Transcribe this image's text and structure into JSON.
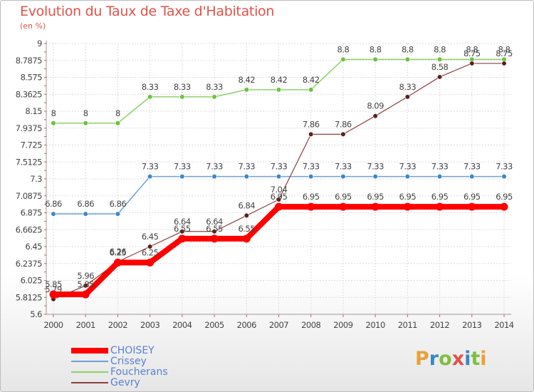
{
  "title": "Evolution du Taux de Taxe d'Habitation",
  "subtitle": "(en %)",
  "colors": {
    "title": "#e0524a",
    "legend_text": "#5a7fd0",
    "axis_text": "#444444",
    "grid": "#dddddd"
  },
  "logo": {
    "letters": [
      {
        "char": "P",
        "color": "#e8a23a"
      },
      {
        "char": "r",
        "color": "#3a86c8"
      },
      {
        "char": "o",
        "color": "#7fbf3f"
      },
      {
        "char": "x",
        "color": "#e0524a"
      },
      {
        "char": "i",
        "color": "#3a86c8"
      },
      {
        "char": "t",
        "color": "#7fbf3f"
      },
      {
        "char": "i",
        "color": "#e8a23a"
      }
    ]
  },
  "chart_data": {
    "type": "line",
    "title": "Evolution du Taux de Taxe d'Habitation",
    "subtitle": "(en %)",
    "x": [
      2000,
      2001,
      2002,
      2003,
      2004,
      2005,
      2006,
      2007,
      2008,
      2009,
      2010,
      2011,
      2012,
      2013,
      2014
    ],
    "x_tick_labels": [
      "2000",
      "2001",
      "2002",
      "2003",
      "2004",
      "2005",
      "2006",
      "2007",
      "2008",
      "2009",
      "2010",
      "2011",
      "2012",
      "2013",
      "2014"
    ],
    "ylim": [
      5.6,
      9
    ],
    "y_tick_labels": [
      "9",
      "8.7875",
      "8.575",
      "8.3625",
      "8.15",
      "7.9375",
      "7.725",
      "7.5125",
      "7.3",
      "7.0875",
      "6.875",
      "6.6625",
      "6.45",
      "6.2375",
      "6.025",
      "5.8125",
      "5.6"
    ],
    "y_ticks": [
      9,
      8.7875,
      8.575,
      8.3625,
      8.15,
      7.9375,
      7.725,
      7.5125,
      7.3,
      7.0875,
      6.875,
      6.6625,
      6.45,
      6.2375,
      6.025,
      5.8125,
      5.6
    ],
    "grid": true,
    "legend_position": "bottom-left",
    "series": [
      {
        "name": "Foucherans",
        "color": "#8fd06a",
        "marker": "#6cc23f",
        "width": 1.5,
        "values": [
          8,
          8,
          8,
          8.33,
          8.33,
          8.33,
          8.42,
          8.42,
          8.42,
          8.8,
          8.8,
          8.8,
          8.8,
          8.8,
          8.8
        ],
        "labels": [
          "8",
          "8",
          "8",
          "8.33",
          "8.33",
          "8.33",
          "8.42",
          "8.42",
          "8.42",
          "8.8",
          "8.8",
          "8.8",
          "8.8",
          "8.8",
          "8.8"
        ]
      },
      {
        "name": "Crissey",
        "color": "#6fa0d4",
        "marker": "#3f86c8",
        "width": 1.5,
        "values": [
          6.86,
          6.86,
          6.86,
          7.33,
          7.33,
          7.33,
          7.33,
          7.33,
          7.33,
          7.33,
          7.33,
          7.33,
          7.33,
          7.33,
          7.33
        ],
        "labels": [
          "6.86",
          "6.86",
          "6.86",
          "7.33",
          "7.33",
          "7.33",
          "7.33",
          "7.33",
          "7.33",
          "7.33",
          "7.33",
          "7.33",
          "7.33",
          "7.33",
          "7.33"
        ]
      },
      {
        "name": "Gevry",
        "color": "#8a4040",
        "marker": "#5e1f1f",
        "width": 1.2,
        "values": [
          5.79,
          5.96,
          6.26,
          6.45,
          6.64,
          6.64,
          6.84,
          7.04,
          7.86,
          7.86,
          8.09,
          8.33,
          8.58,
          8.75,
          8.75
        ],
        "labels": [
          "5.79",
          "5.96",
          "6.26",
          "6.45",
          "6.64",
          "6.64",
          "6.84",
          "7.04",
          "7.86",
          "7.86",
          "8.09",
          "8.33",
          "8.58",
          "8.75",
          "8.75"
        ]
      },
      {
        "name": "CHOISEY",
        "color": "#ff0000",
        "marker": "#ff0000",
        "width": 8,
        "values": [
          5.85,
          5.85,
          6.25,
          6.25,
          6.55,
          6.55,
          6.55,
          6.95,
          6.95,
          6.95,
          6.95,
          6.95,
          6.95,
          6.95,
          6.95
        ],
        "labels": [
          "5.85",
          "5.85",
          "6.25",
          "6.25",
          "6.55",
          "6.55",
          "6.55",
          "6.95",
          "6.95",
          "6.95",
          "6.95",
          "6.95",
          "6.95",
          "6.95",
          "6.95"
        ]
      }
    ],
    "legend": [
      {
        "name": "CHOISEY",
        "color": "#ff0000",
        "width": 8
      },
      {
        "name": "Crissey",
        "color": "#6fa0d4",
        "width": 2
      },
      {
        "name": "Foucherans",
        "color": "#8fd06a",
        "width": 2
      },
      {
        "name": "Gevry",
        "color": "#8a4040",
        "width": 2
      }
    ]
  }
}
